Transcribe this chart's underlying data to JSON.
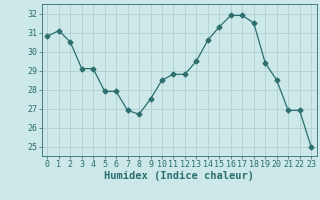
{
  "x": [
    0,
    1,
    2,
    3,
    4,
    5,
    6,
    7,
    8,
    9,
    10,
    11,
    12,
    13,
    14,
    15,
    16,
    17,
    18,
    19,
    20,
    21,
    22,
    23
  ],
  "y": [
    30.8,
    31.1,
    30.5,
    29.1,
    29.1,
    27.9,
    27.9,
    26.9,
    26.7,
    27.5,
    28.5,
    28.8,
    28.8,
    29.5,
    30.6,
    31.3,
    31.9,
    31.9,
    31.5,
    29.4,
    28.5,
    26.9,
    26.9,
    25.0
  ],
  "xlabel": "Humidex (Indice chaleur)",
  "ylim": [
    24.5,
    32.5
  ],
  "xlim": [
    -0.5,
    23.5
  ],
  "line_color": "#2d6e6e",
  "marker": "D",
  "marker_size": 2.5,
  "bg_color": "#cce8e8",
  "grid_color": "#aacccc",
  "yticks": [
    25,
    26,
    27,
    28,
    29,
    30,
    31,
    32
  ],
  "xticks": [
    0,
    1,
    2,
    3,
    4,
    5,
    6,
    7,
    8,
    9,
    10,
    11,
    12,
    13,
    14,
    15,
    16,
    17,
    18,
    19,
    20,
    21,
    22,
    23
  ],
  "tick_fontsize": 6,
  "xlabel_fontsize": 7.5
}
